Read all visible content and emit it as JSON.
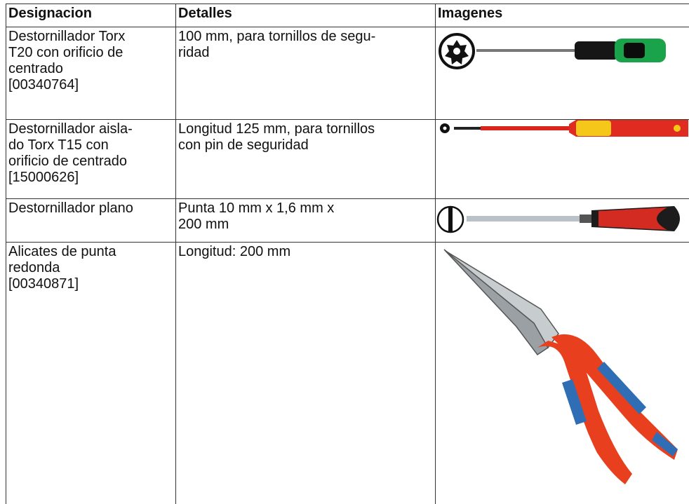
{
  "table": {
    "columns": [
      "Designacion",
      "Detalles",
      "Imagenes"
    ],
    "rows": [
      [
        "Destornillador Torx\nT20 con orificio de\ncentrado\n[00340764]",
        "100 mm, para tornillos de segu-\nridad"
      ],
      [
        "Destornillador aisla-\ndo Torx T15 con\norificio de centrado\n[15000626]",
        "Longitud 125 mm, para tornillos\ncon pin de seguridad"
      ],
      [
        "Destornillador plano",
        "Punta 10 mm x 1,6 mm x\n200 mm"
      ],
      [
        "Alicates de punta\nredonda\n[00340871]",
        "Longitud: 200 mm"
      ]
    ]
  }
}
